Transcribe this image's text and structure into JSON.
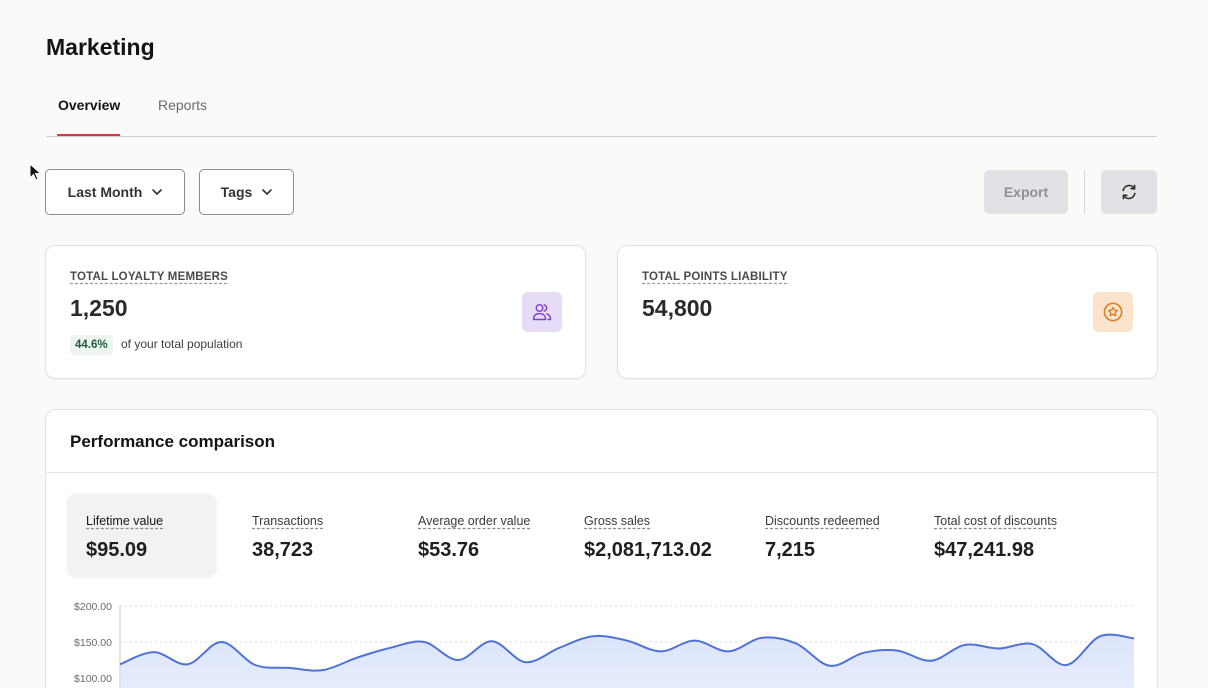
{
  "page": {
    "title": "Marketing"
  },
  "tabs": [
    {
      "label": "Overview",
      "active": true
    },
    {
      "label": "Reports",
      "active": false
    }
  ],
  "filters": {
    "date_range": "Last Month",
    "tags": "Tags"
  },
  "toolbar": {
    "export_label": "Export",
    "refresh_icon": "refresh-icon"
  },
  "stats": {
    "members": {
      "label": "TOTAL LOYALTY MEMBERS",
      "value": "1,250",
      "percent": "44.6%",
      "percent_text": "of your total population",
      "icon": "users-icon",
      "icon_bg": "#e7dcf7"
    },
    "points": {
      "label": "TOTAL POINTS LIABILITY",
      "value": "54,800",
      "icon": "star-badge-icon",
      "icon_bg": "#fbe3cc"
    }
  },
  "performance": {
    "title": "Performance comparison",
    "metrics": [
      {
        "label": "Lifetime value",
        "value": "$95.09",
        "active": true
      },
      {
        "label": "Transactions",
        "value": "38,723"
      },
      {
        "label": "Average order value",
        "value": "$53.76"
      },
      {
        "label": "Gross sales",
        "value": "$2,081,713.02"
      },
      {
        "label": "Discounts redeemed",
        "value": "7,215"
      },
      {
        "label": "Total cost of discounts",
        "value": "$47,241.98"
      }
    ]
  },
  "colors": {
    "accent": "#e0344a",
    "line": "#4f72d8",
    "area": "#dbe4fb"
  },
  "chart_data": {
    "type": "area",
    "y_tick_labels": [
      "$200.00",
      "$150.00",
      "$100.00"
    ],
    "ylim": [
      100,
      200
    ],
    "grid": true,
    "values": [
      119,
      136,
      119,
      150,
      118,
      114,
      111,
      128,
      142,
      150,
      125,
      151,
      122,
      142,
      158,
      152,
      137,
      152,
      137,
      156,
      148,
      117,
      135,
      138,
      124,
      146,
      141,
      147,
      118,
      158,
      155
    ]
  }
}
